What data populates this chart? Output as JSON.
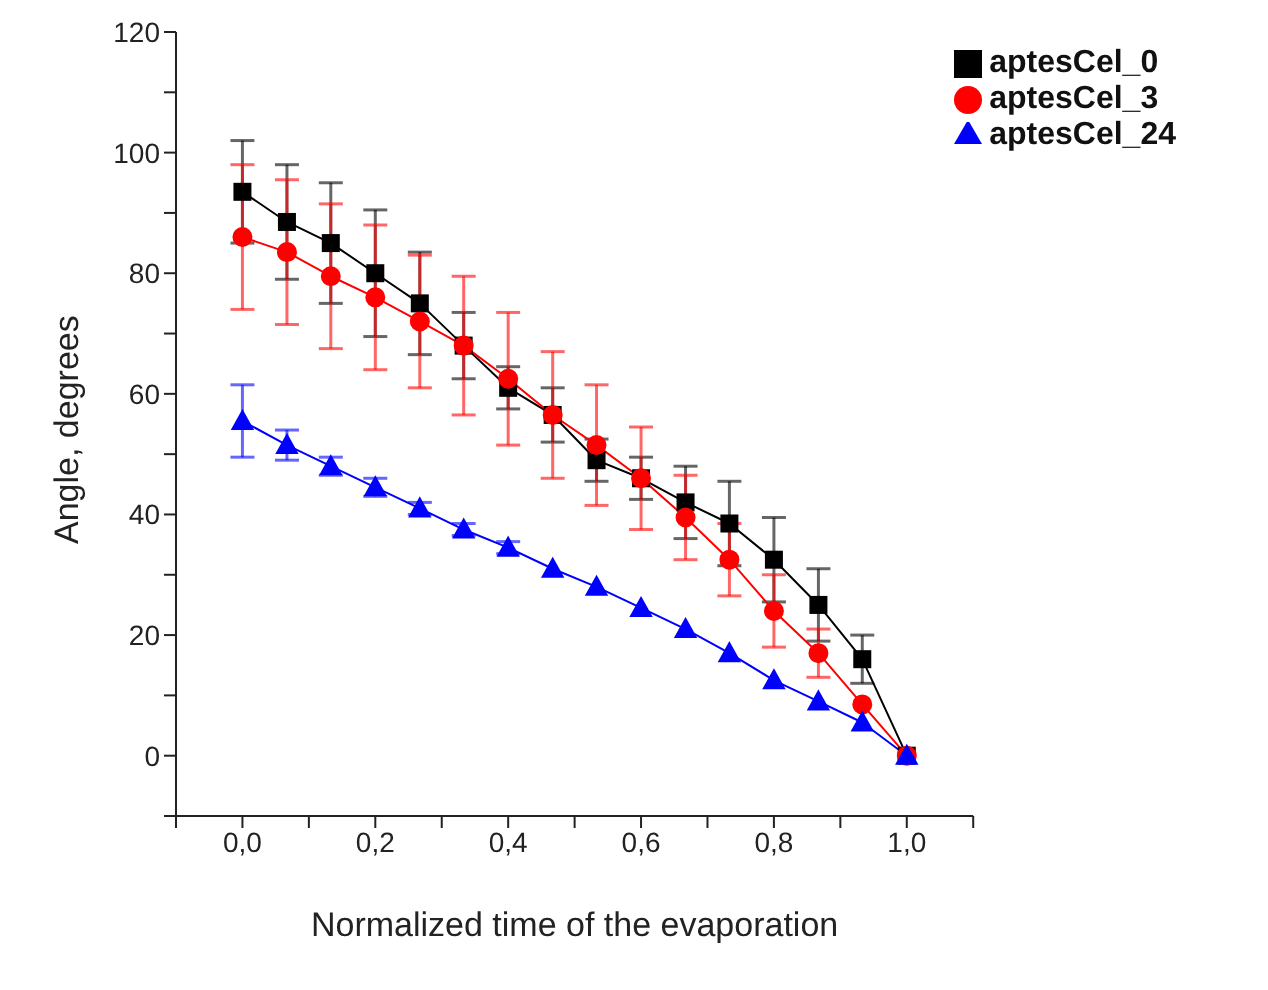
{
  "chart_data": {
    "type": "line",
    "xlabel": "Normalized time of the evaporation",
    "ylabel": "Angle, degrees",
    "x": [
      0,
      0.067,
      0.133,
      0.2,
      0.267,
      0.333,
      0.4,
      0.467,
      0.533,
      0.6,
      0.667,
      0.733,
      0.8,
      0.867,
      0.933,
      1.0
    ],
    "series": [
      {
        "name": "aptesCel_0",
        "color": "#000000",
        "marker": "square",
        "values": [
          93.5,
          88.5,
          85,
          80,
          75,
          68,
          61,
          56.5,
          49,
          46,
          42,
          38.5,
          32.5,
          25,
          16,
          0
        ],
        "errors": [
          8.5,
          9.5,
          10,
          10.5,
          8.5,
          5.5,
          3.5,
          4.5,
          3.5,
          3.5,
          6,
          7,
          7,
          6,
          4,
          null
        ]
      },
      {
        "name": "aptesCel_3",
        "color": "#ff0000",
        "marker": "circle",
        "values": [
          86,
          83.5,
          79.5,
          76,
          72,
          68,
          62.5,
          56.5,
          51.5,
          46,
          39.5,
          32.5,
          24,
          17,
          8.5,
          0
        ],
        "errors": [
          12,
          12,
          12,
          12,
          11,
          11.5,
          11,
          10.5,
          10,
          8.5,
          7,
          6,
          6,
          4,
          null,
          null
        ]
      },
      {
        "name": "aptesCel_24",
        "color": "#0000ff",
        "marker": "triangle",
        "values": [
          55.5,
          51.5,
          48,
          44.5,
          41,
          37.5,
          34.5,
          31,
          28,
          24.5,
          21,
          17,
          12.5,
          9,
          5.5,
          0
        ],
        "errors": [
          6,
          2.5,
          1.5,
          1.5,
          1,
          1,
          1,
          null,
          null,
          null,
          null,
          null,
          null,
          null,
          null,
          null
        ]
      }
    ],
    "xlim": [
      -0.1,
      1.1
    ],
    "xticks": [
      {
        "value": -0.1,
        "label": null
      },
      {
        "value": 0,
        "label": "0,0"
      },
      {
        "value": 0.1,
        "label": null
      },
      {
        "value": 0.2,
        "label": "0,2"
      },
      {
        "value": 0.3,
        "label": null
      },
      {
        "value": 0.4,
        "label": "0,4"
      },
      {
        "value": 0.5,
        "label": null
      },
      {
        "value": 0.6,
        "label": "0,6"
      },
      {
        "value": 0.7,
        "label": null
      },
      {
        "value": 0.8,
        "label": "0,8"
      },
      {
        "value": 0.9,
        "label": null
      },
      {
        "value": 1.0,
        "label": "1,0"
      },
      {
        "value": 1.1,
        "label": null
      }
    ],
    "ylim": [
      -10,
      120
    ],
    "yticks": [
      {
        "value": -10,
        "label": null
      },
      0,
      {
        "value": 10,
        "label": null
      },
      20,
      {
        "value": 30,
        "label": null
      },
      40,
      {
        "value": 50,
        "label": null
      },
      60,
      {
        "value": 70,
        "label": null
      },
      80,
      {
        "value": 90,
        "label": null
      },
      100,
      {
        "value": 110,
        "label": null
      },
      120
    ],
    "grid": false,
    "legend": "top right",
    "line_style": "solid"
  }
}
